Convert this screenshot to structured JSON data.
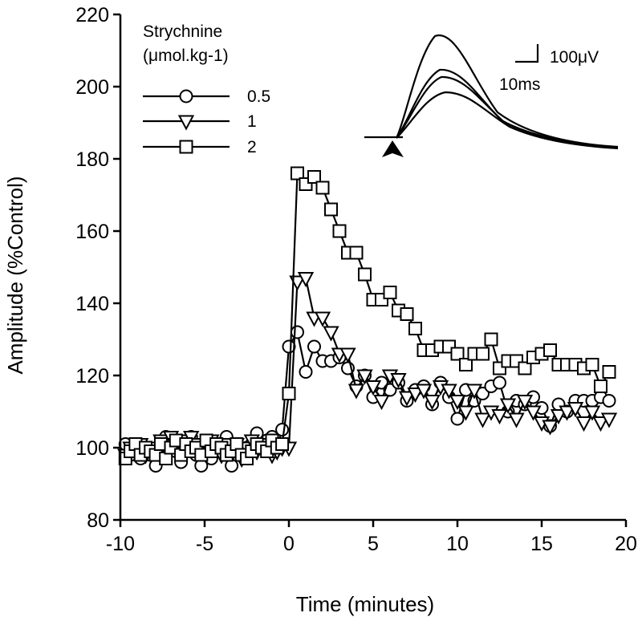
{
  "chart_data": {
    "type": "line",
    "xlabel": "Time (minutes)",
    "ylabel": "Amplitude (%Control)",
    "xlim": [
      -10,
      20
    ],
    "ylim": [
      80,
      220
    ],
    "xticks": [
      "-10",
      "-5",
      "0",
      "5",
      "10",
      "15",
      "20"
    ],
    "yticks": [
      "80",
      "100",
      "120",
      "140",
      "160",
      "180",
      "200",
      "220"
    ],
    "legend": {
      "title_line1": "Strychnine",
      "title_line2": "(μmol.kg-1)",
      "position": "top-left"
    },
    "series": [
      {
        "name": "0.5",
        "marker": "circle",
        "x": [
          -9.7,
          -9.4,
          -9.1,
          -8.8,
          -8.5,
          -8.2,
          -7.9,
          -7.6,
          -7.3,
          -7.0,
          -6.7,
          -6.4,
          -6.1,
          -5.8,
          -5.5,
          -5.2,
          -4.9,
          -4.6,
          -4.3,
          -4.0,
          -3.7,
          -3.4,
          -3.1,
          -2.8,
          -2.5,
          -2.2,
          -1.9,
          -1.6,
          -1.3,
          -1.0,
          -0.7,
          -0.4,
          0.0,
          0.5,
          1.0,
          1.5,
          2.0,
          2.5,
          3.0,
          3.5,
          4.0,
          4.5,
          5.0,
          5.5,
          6.0,
          6.5,
          7.0,
          7.5,
          8.0,
          8.5,
          9.0,
          9.5,
          10.0,
          10.5,
          11.0,
          11.5,
          12.0,
          12.5,
          13.0,
          13.5,
          14.0,
          14.5,
          15.0,
          15.5,
          16.0,
          16.5,
          17.0,
          17.5,
          18.0,
          18.5,
          19.0
        ],
        "values": [
          101,
          98,
          100,
          97,
          99,
          98,
          95,
          100,
          103,
          101,
          99,
          96,
          100,
          103,
          98,
          95,
          101,
          97,
          99,
          100,
          103,
          95,
          101,
          98,
          100,
          101,
          104,
          101,
          102,
          103,
          100,
          105,
          128,
          132,
          121,
          128,
          124,
          124,
          125,
          122,
          117,
          120,
          114,
          118,
          116,
          118,
          113,
          116,
          117,
          112,
          118,
          114,
          108,
          116,
          113,
          115,
          117,
          118,
          110,
          113,
          112,
          114,
          111,
          106,
          112,
          110,
          113,
          113,
          113,
          114,
          113
        ]
      },
      {
        "name": "1",
        "marker": "triangle-down",
        "x": [
          -9.7,
          -9.4,
          -9.1,
          -8.8,
          -8.5,
          -8.2,
          -7.9,
          -7.6,
          -7.3,
          -7.0,
          -6.7,
          -6.4,
          -6.1,
          -5.8,
          -5.5,
          -5.2,
          -4.9,
          -4.6,
          -4.3,
          -4.0,
          -3.7,
          -3.4,
          -3.1,
          -2.8,
          -2.5,
          -2.2,
          -1.9,
          -1.6,
          -1.3,
          -1.0,
          -0.7,
          -0.4,
          0.0,
          0.5,
          1.0,
          1.5,
          2.0,
          2.5,
          3.0,
          3.5,
          4.0,
          4.5,
          5.0,
          5.5,
          6.0,
          6.5,
          7.0,
          7.5,
          8.0,
          8.5,
          9.0,
          9.5,
          10.0,
          10.5,
          11.0,
          11.5,
          12.0,
          12.5,
          13.0,
          13.5,
          14.0,
          14.5,
          15.0,
          15.5,
          16.0,
          16.5,
          17.0,
          17.5,
          18.0,
          18.5,
          19.0
        ],
        "values": [
          98,
          100,
          99,
          101,
          98,
          100,
          99,
          102,
          100,
          103,
          101,
          102,
          99,
          103,
          101,
          100,
          99,
          102,
          100,
          98,
          101,
          99,
          101,
          97,
          100,
          102,
          99,
          101,
          100,
          98,
          99,
          100,
          100,
          146,
          147,
          136,
          136,
          132,
          126,
          126,
          116,
          120,
          117,
          113,
          120,
          119,
          114,
          115,
          116,
          113,
          117,
          116,
          113,
          110,
          116,
          108,
          110,
          109,
          112,
          108,
          113,
          110,
          107,
          106,
          109,
          110,
          111,
          107,
          110,
          107,
          108
        ]
      },
      {
        "name": "2",
        "marker": "square",
        "x": [
          -9.7,
          -9.4,
          -9.1,
          -8.8,
          -8.5,
          -8.2,
          -7.9,
          -7.6,
          -7.3,
          -7.0,
          -6.7,
          -6.4,
          -6.1,
          -5.8,
          -5.5,
          -5.2,
          -4.9,
          -4.6,
          -4.3,
          -4.0,
          -3.7,
          -3.4,
          -3.1,
          -2.8,
          -2.5,
          -2.2,
          -1.9,
          -1.6,
          -1.3,
          -1.0,
          -0.7,
          -0.4,
          0.0,
          0.5,
          1.0,
          1.5,
          2.0,
          2.5,
          3.0,
          3.5,
          4.0,
          4.5,
          5.0,
          5.5,
          6.0,
          6.5,
          7.0,
          7.5,
          8.0,
          8.5,
          9.0,
          9.5,
          10.0,
          10.5,
          11.0,
          11.5,
          12.0,
          12.5,
          13.0,
          13.5,
          14.0,
          14.5,
          15.0,
          15.5,
          16.0,
          16.5,
          17.0,
          17.5,
          18.0,
          18.5,
          19.0
        ],
        "values": [
          97,
          99,
          101,
          98,
          100,
          99,
          98,
          101,
          97,
          100,
          102,
          98,
          101,
          99,
          100,
          98,
          102,
          99,
          101,
          100,
          98,
          99,
          101,
          98,
          97,
          99,
          101,
          100,
          99,
          102,
          100,
          101,
          115,
          176,
          173,
          175,
          172,
          166,
          160,
          154,
          154,
          148,
          141,
          141,
          143,
          138,
          137,
          133,
          127,
          127,
          128,
          128,
          126,
          123,
          126,
          126,
          130,
          122,
          124,
          124,
          122,
          125,
          126,
          127,
          123,
          123,
          123,
          122,
          123,
          117,
          121
        ]
      }
    ],
    "inset": {
      "scale_voltage": "100μV",
      "scale_time": "10ms",
      "traces": 4
    }
  }
}
